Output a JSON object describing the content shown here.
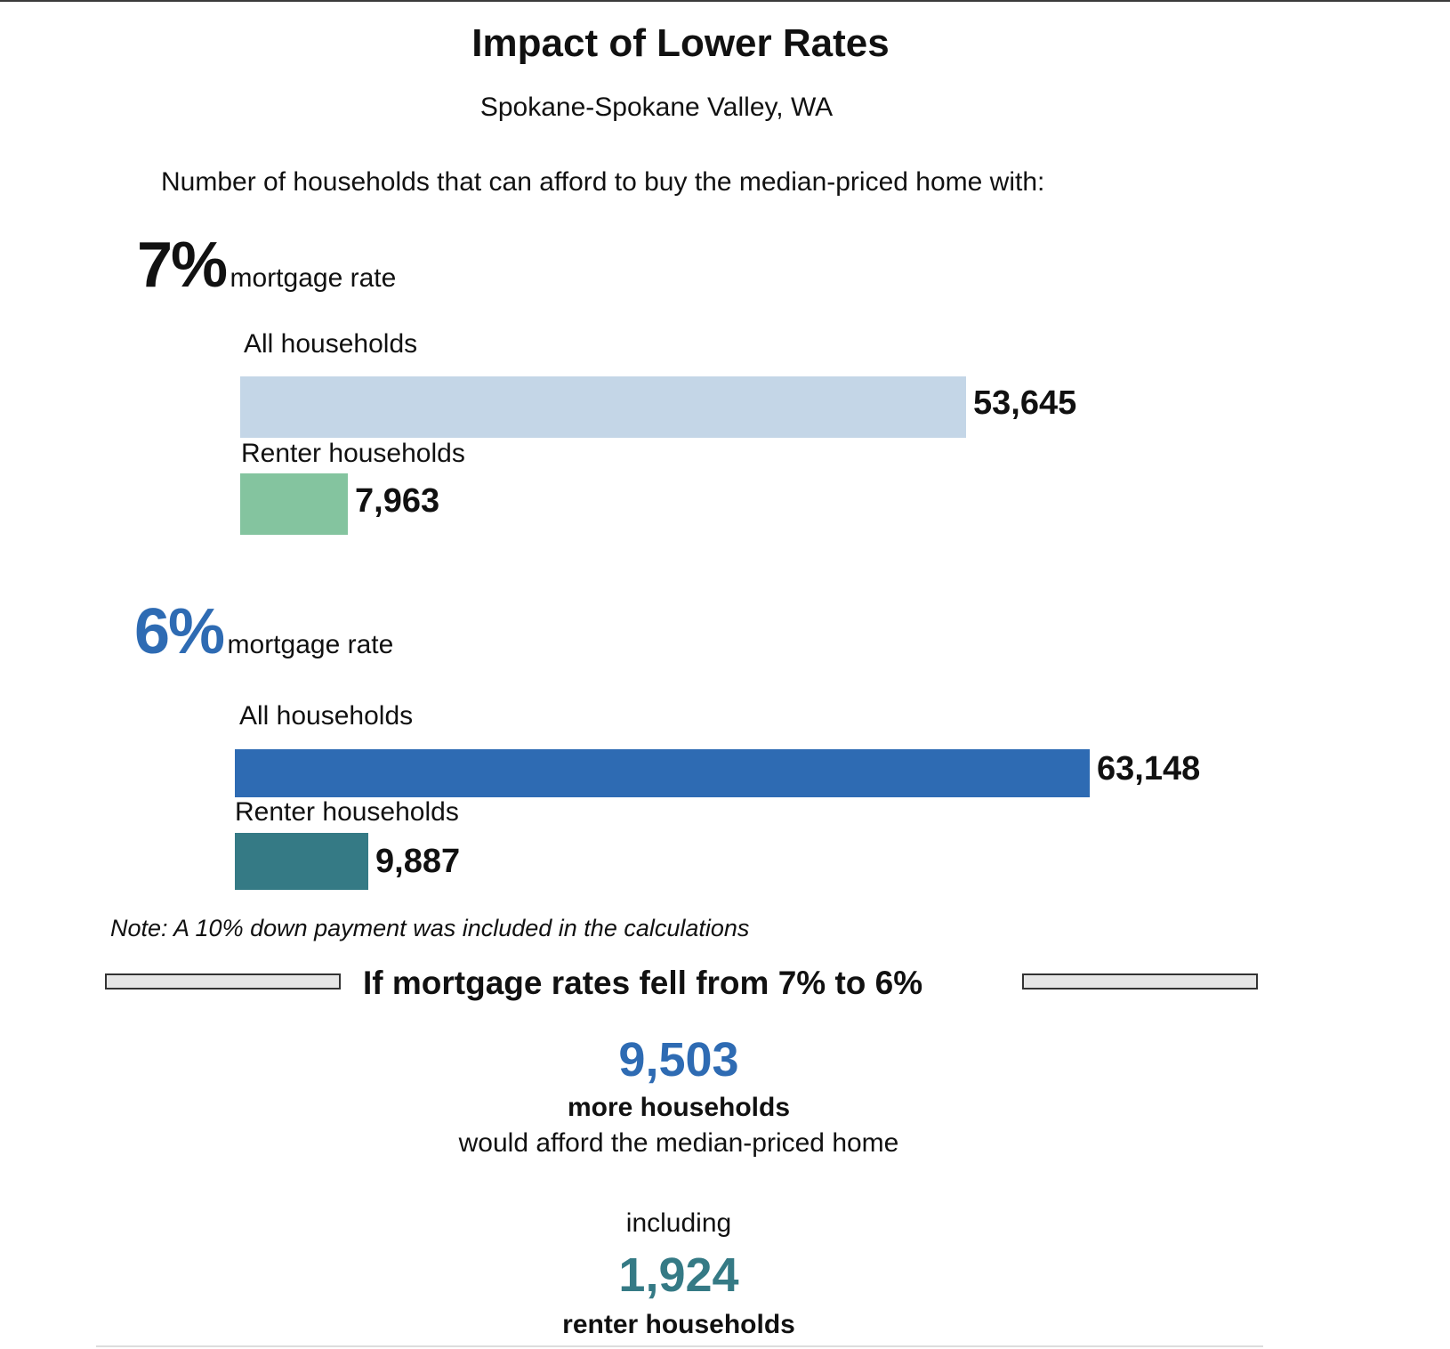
{
  "title": "Impact of Lower Rates",
  "subtitle": "Spokane-Spokane Valley, WA",
  "lead": "Number of households that can afford to buy the median-priced home with:",
  "rates": [
    {
      "value": "7%",
      "label": "mortgage rate",
      "color": "#111111"
    },
    {
      "value": "6%",
      "label": "mortgage rate",
      "color": "#2e6bb3"
    }
  ],
  "categories": {
    "all": "All households",
    "renter": "Renter households"
  },
  "values_text": {
    "r7_all": "53,645",
    "r7_renter": "7,963",
    "r6_all": "63,148",
    "r6_renter": "9,887"
  },
  "note": "Note: A 10% down payment was included in the calculations",
  "summary": {
    "heading": "If mortgage rates fell from 7% to 6%",
    "more_value": "9,503",
    "more_label": "more households",
    "more_desc": "would afford the median-priced home",
    "including": "including",
    "renter_value": "1,924",
    "renter_label": "renter households",
    "more_color": "#2e6bb3",
    "renter_color": "#357a85"
  },
  "chart_data": {
    "type": "bar",
    "orientation": "horizontal",
    "title": "Impact of Lower Rates",
    "subtitle": "Spokane-Spokane Valley, WA",
    "groups": [
      {
        "rate": "7%",
        "bars": [
          {
            "category": "All households",
            "value": 53645,
            "color": "#c4d6e7"
          },
          {
            "category": "Renter households",
            "value": 7963,
            "color": "#84c49f"
          }
        ]
      },
      {
        "rate": "6%",
        "bars": [
          {
            "category": "All households",
            "value": 63148,
            "color": "#2e6bb3"
          },
          {
            "category": "Renter households",
            "value": 9887,
            "color": "#357a85"
          }
        ]
      }
    ],
    "xlim": [
      0,
      63148
    ]
  }
}
